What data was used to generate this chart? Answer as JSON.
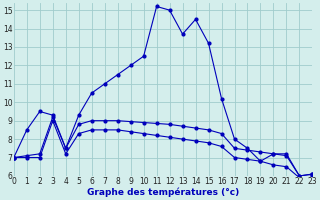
{
  "title": "Graphe des températures (°c)",
  "bg_color": "#d4eeec",
  "grid_color": "#a0cccc",
  "line_color": "#0000bb",
  "xlim": [
    0,
    23
  ],
  "ylim": [
    6,
    15.4
  ],
  "xtick_vals": [
    0,
    1,
    2,
    3,
    4,
    5,
    6,
    7,
    8,
    9,
    10,
    11,
    12,
    13,
    14,
    15,
    16,
    17,
    18,
    19,
    20,
    21,
    22,
    23
  ],
  "ytick_vals": [
    6,
    7,
    8,
    9,
    10,
    11,
    12,
    13,
    14,
    15
  ],
  "curve1_x": [
    0,
    1,
    2,
    3,
    4,
    5,
    6,
    7,
    8,
    9,
    10,
    11,
    12,
    13,
    14,
    15,
    16,
    17,
    18,
    19,
    20,
    21,
    22,
    23
  ],
  "curve1_y": [
    7.0,
    8.5,
    9.5,
    9.3,
    7.5,
    9.3,
    10.5,
    11.0,
    11.5,
    12.0,
    12.5,
    15.2,
    15.0,
    13.7,
    14.5,
    13.2,
    10.2,
    8.0,
    7.5,
    6.8,
    7.2,
    7.2,
    6.0,
    6.1
  ],
  "curve2_x": [
    0,
    1,
    2,
    3,
    4,
    5,
    6,
    7,
    8,
    9,
    10,
    11,
    12,
    13,
    14,
    15,
    16,
    17,
    18,
    19,
    20,
    21,
    22,
    23
  ],
  "curve2_y": [
    7.0,
    7.1,
    7.2,
    9.2,
    7.5,
    8.8,
    9.0,
    9.0,
    9.0,
    8.95,
    8.9,
    8.85,
    8.8,
    8.7,
    8.6,
    8.5,
    8.3,
    7.5,
    7.4,
    7.3,
    7.2,
    7.1,
    6.0,
    6.1
  ],
  "curve3_x": [
    0,
    1,
    2,
    3,
    4,
    5,
    6,
    7,
    8,
    9,
    10,
    11,
    12,
    13,
    14,
    15,
    16,
    17,
    18,
    19,
    20,
    21,
    22,
    23
  ],
  "curve3_y": [
    7.0,
    7.0,
    7.0,
    9.0,
    7.2,
    8.3,
    8.5,
    8.5,
    8.5,
    8.4,
    8.3,
    8.2,
    8.1,
    8.0,
    7.9,
    7.8,
    7.6,
    7.0,
    6.9,
    6.8,
    6.6,
    6.5,
    5.9,
    6.0
  ],
  "marker_size": 2.0,
  "line_width": 0.8,
  "xlabel_size": 6.5,
  "tick_size": 5.5
}
